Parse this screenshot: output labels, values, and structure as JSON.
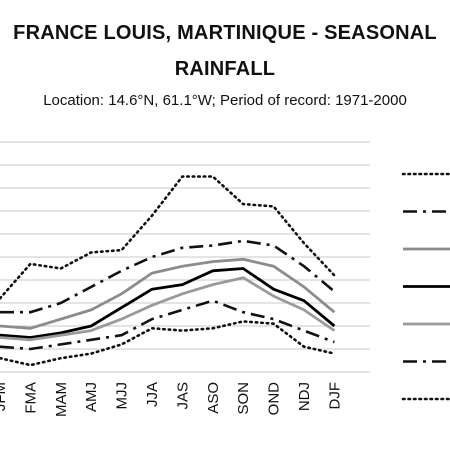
{
  "chart_data": {
    "type": "line",
    "title_line1": "FRANCE LOUIS, MARTINIQUE - SEASONAL",
    "title_line2": "RAINFALL",
    "subtitle": "Location: 14.6°N, 61.1°W; Period of record: 1971-2000",
    "categories": [
      "JFM",
      "FMA",
      "MAM",
      "AMJ",
      "MJJ",
      "JJA",
      "JAS",
      "ASO",
      "SON",
      "OND",
      "NDJ",
      "DJF"
    ],
    "ylim": [
      0,
      10
    ],
    "grid": true,
    "legend_position": "right",
    "series": [
      {
        "values": [
          3.2,
          4.7,
          4.5,
          5.2,
          5.3,
          6.8,
          8.5,
          8.5,
          7.3,
          7.2,
          5.6,
          4.2
        ],
        "style": "dotted",
        "color": "#111111"
      },
      {
        "values": [
          2.6,
          2.6,
          3.0,
          3.7,
          4.4,
          5.0,
          5.4,
          5.5,
          5.7,
          5.5,
          4.6,
          3.5
        ],
        "style": "dash-dot",
        "color": "#111111"
      },
      {
        "values": [
          2.0,
          1.9,
          2.3,
          2.7,
          3.4,
          4.3,
          4.6,
          4.8,
          4.9,
          4.6,
          3.7,
          2.6
        ],
        "style": "solid",
        "color": "#8c8c8c"
      },
      {
        "values": [
          1.6,
          1.5,
          1.7,
          2.0,
          2.8,
          3.6,
          3.8,
          4.4,
          4.5,
          3.6,
          3.1,
          2.0
        ],
        "style": "solid",
        "color": "#000000"
      },
      {
        "values": [
          1.5,
          1.4,
          1.6,
          1.8,
          2.3,
          2.9,
          3.4,
          3.8,
          4.1,
          3.3,
          2.7,
          1.8
        ],
        "style": "solid",
        "color": "#9a9a9a"
      },
      {
        "values": [
          1.1,
          1.0,
          1.2,
          1.4,
          1.6,
          2.3,
          2.7,
          3.1,
          2.6,
          2.3,
          1.8,
          1.3
        ],
        "style": "dash-dot",
        "color": "#111111"
      },
      {
        "values": [
          0.6,
          0.3,
          0.6,
          0.8,
          1.2,
          1.9,
          1.8,
          1.9,
          2.2,
          2.1,
          1.1,
          0.8
        ],
        "style": "dotted",
        "color": "#111111"
      }
    ]
  }
}
